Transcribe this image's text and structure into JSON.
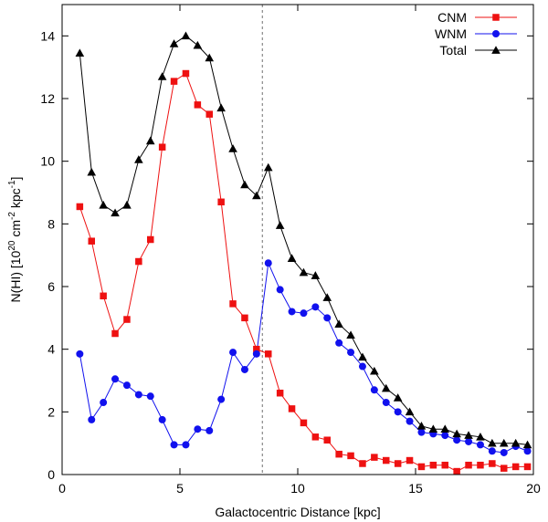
{
  "chart_data": {
    "type": "line",
    "title": "",
    "xlabel": "Galactocentric Distance [kpc]",
    "ylabel": {
      "prefix": "N(HI) [10",
      "exp1": "20",
      "mid": " cm",
      "exp2": "-2",
      "mid2": " kpc",
      "exp3": "-1",
      "suffix": "]"
    },
    "xlim": [
      0,
      20
    ],
    "ylim": [
      0,
      15
    ],
    "x_ticks": [
      0,
      5,
      10,
      15,
      20
    ],
    "y_ticks": [
      0,
      2,
      4,
      6,
      8,
      10,
      12,
      14
    ],
    "x_tick_labels": [
      "0",
      "5",
      "10",
      "15",
      "20"
    ],
    "y_tick_labels": [
      "0",
      "2",
      "4",
      "6",
      "8",
      "10",
      "12",
      "14"
    ],
    "grid": false,
    "legend_position": "top-right",
    "reference_line": {
      "x": 8.5,
      "style": "dotted"
    },
    "x": [
      0.75,
      1.25,
      1.75,
      2.25,
      2.75,
      3.25,
      3.75,
      4.25,
      4.75,
      5.25,
      5.75,
      6.25,
      6.75,
      7.25,
      7.75,
      8.25,
      8.75,
      9.25,
      9.75,
      10.25,
      10.75,
      11.25,
      11.75,
      12.25,
      12.75,
      13.25,
      13.75,
      14.25,
      14.75,
      15.25,
      15.75,
      16.25,
      16.75,
      17.25,
      17.75,
      18.25,
      18.75,
      19.25,
      19.75
    ],
    "series": [
      {
        "name": "CNM",
        "color": "#ee1111",
        "marker": "square",
        "values": [
          8.55,
          7.45,
          5.7,
          4.5,
          4.95,
          6.8,
          7.5,
          10.45,
          12.55,
          12.8,
          11.8,
          11.5,
          8.7,
          5.45,
          5.0,
          4.0,
          3.85,
          2.6,
          2.1,
          1.65,
          1.2,
          1.1,
          0.65,
          0.6,
          0.35,
          0.55,
          0.45,
          0.35,
          0.45,
          0.25,
          0.3,
          0.3,
          0.1,
          0.3,
          0.3,
          0.35,
          0.2,
          0.25,
          0.25
        ]
      },
      {
        "name": "WNM",
        "color": "#1111ee",
        "marker": "circle",
        "values": [
          3.85,
          1.75,
          2.3,
          3.05,
          2.85,
          2.55,
          2.5,
          1.75,
          0.95,
          0.95,
          1.45,
          1.4,
          2.4,
          3.9,
          3.35,
          3.85,
          6.75,
          5.9,
          5.2,
          5.15,
          5.35,
          5.0,
          4.2,
          3.9,
          3.45,
          2.7,
          2.3,
          2.0,
          1.7,
          1.35,
          1.3,
          1.25,
          1.1,
          1.05,
          0.95,
          0.75,
          0.7,
          0.9,
          0.75
        ]
      },
      {
        "name": "Total",
        "color": "#000000",
        "marker": "triangle",
        "values": [
          13.45,
          9.65,
          8.6,
          8.35,
          8.6,
          10.05,
          10.65,
          12.7,
          13.75,
          14.0,
          13.7,
          13.3,
          11.7,
          10.4,
          9.25,
          8.9,
          9.8,
          7.95,
          6.9,
          6.45,
          6.35,
          5.65,
          4.8,
          4.45,
          3.75,
          3.3,
          2.75,
          2.45,
          2.0,
          1.55,
          1.45,
          1.45,
          1.3,
          1.25,
          1.2,
          1.0,
          1.0,
          1.0,
          0.95
        ]
      }
    ]
  }
}
